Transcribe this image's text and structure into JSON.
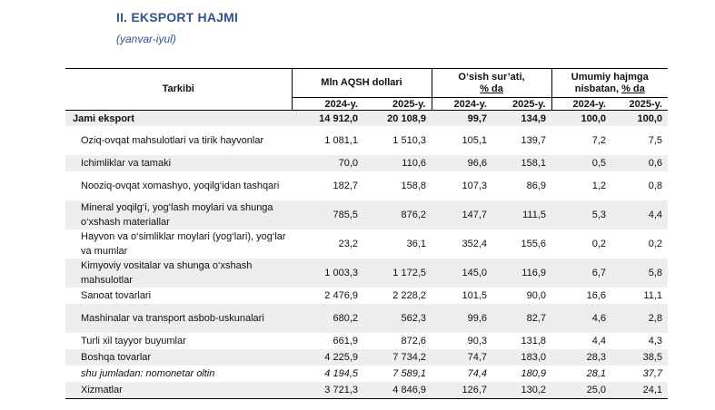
{
  "title": "II. EKSPORT HAJMI",
  "subtitle": "(yanvar-iyul)",
  "header": {
    "col_structure": "Tarkibi",
    "group_mln": "Mln AQSH dollari",
    "group_growth_line1": "O‘sish sur’ati,",
    "group_growth_line2": "% da",
    "group_share_line1": "Umumiy hajmga",
    "group_share_line2_pre": "nisbatan, ",
    "group_share_line2_ul": "% da",
    "years": [
      "2024-y.",
      "2025-y.",
      "2024-y.",
      "2025-y.",
      "2024-y.",
      "2025-y."
    ]
  },
  "rows": [
    {
      "label": "Jami eksport",
      "v": [
        "14 912,0",
        "20 108,9",
        "99,7",
        "134,9",
        "100,0",
        "100,0"
      ]
    },
    {
      "label": "Oziq-ovqat mahsulotlari va tirik hayvonlar",
      "v": [
        "1 081,1",
        "1 510,3",
        "105,1",
        "139,7",
        "7,2",
        "7,5"
      ]
    },
    {
      "label": "Ichimliklar va tamaki",
      "v": [
        "70,0",
        "110,6",
        "96,6",
        "158,1",
        "0,5",
        "0,6"
      ]
    },
    {
      "label": "Nooziq-ovqat xomashyo, yoqilg‘idan tashqari",
      "v": [
        "182,7",
        "158,8",
        "107,3",
        "86,9",
        "1,2",
        "0,8"
      ]
    },
    {
      "label": "Mineral yoqilg‘i, yog‘lash moylari va shunga o‘xshash materiallar",
      "v": [
        "785,5",
        "876,2",
        "147,7",
        "111,5",
        "5,3",
        "4,4"
      ]
    },
    {
      "label": "Hayvon va o‘simliklar moylari (yog‘lari), yog‘lar va mumlar",
      "v": [
        "23,2",
        "36,1",
        "352,4",
        "155,6",
        "0,2",
        "0,2"
      ]
    },
    {
      "label": "Kimyoviy vositalar va shunga o‘xshash mahsulotlar",
      "v": [
        "1 003,3",
        "1 172,5",
        "145,0",
        "116,9",
        "6,7",
        "5,8"
      ]
    },
    {
      "label": "Sanoat tovarlari",
      "v": [
        "2 476,9",
        "2 228,2",
        "101,5",
        "90,0",
        "16,6",
        "11,1"
      ]
    },
    {
      "label": "Mashinalar va transport asbob-uskunalari",
      "v": [
        "680,2",
        "562,3",
        "99,6",
        "82,7",
        "4,6",
        "2,8"
      ]
    },
    {
      "label": "Turli xil tayyor buyumlar",
      "v": [
        "661,9",
        "872,6",
        "90,3",
        "131,8",
        "4,4",
        "4,3"
      ]
    },
    {
      "label": "Boshqa tovarlar",
      "v": [
        "4 225,9",
        "7 734,2",
        "74,7",
        "183,0",
        "28,3",
        "38,5"
      ]
    },
    {
      "label": "shu jumladan: nomonetar oltin",
      "v": [
        "4 194,5",
        "7 589,1",
        "74,4",
        "180,9",
        "28,1",
        "37,7"
      ]
    },
    {
      "label": "Xizmatlar",
      "v": [
        "3 721,3",
        "4 846,9",
        "126,7",
        "130,2",
        "25,0",
        "24,1"
      ]
    }
  ]
}
